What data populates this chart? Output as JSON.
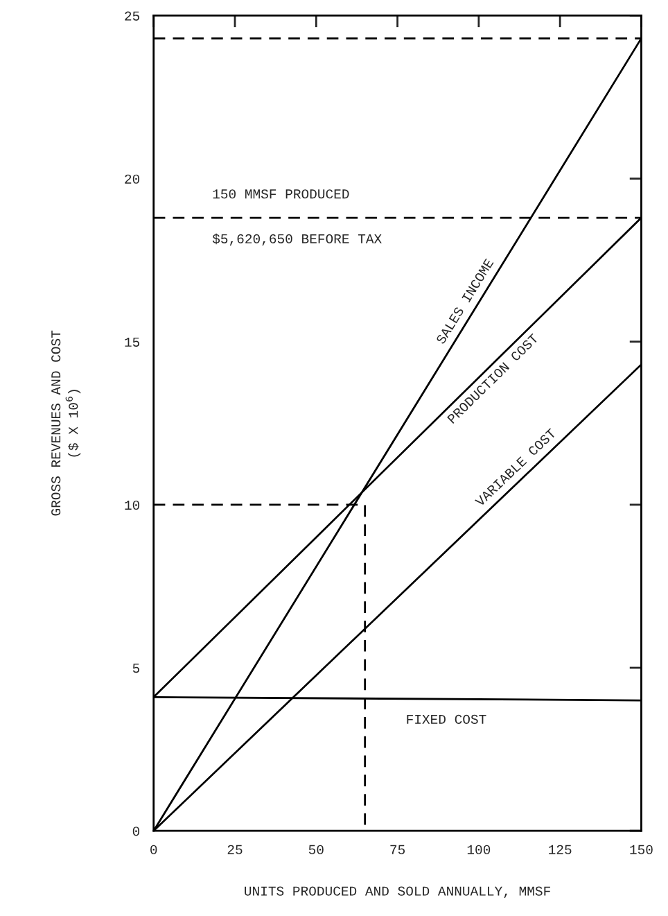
{
  "chart_data": {
    "type": "line",
    "xlabel": "UNITS PRODUCED AND SOLD ANNUALLY, MMSF",
    "ylabel": "GROSS REVENUES AND COST\n($ X 10$^{6}$)",
    "xlim": [
      0,
      150
    ],
    "ylim": [
      0,
      25
    ],
    "xticks": [
      0,
      25,
      50,
      75,
      100,
      125,
      150
    ],
    "yticks": [
      0,
      5,
      10,
      15,
      20,
      25
    ],
    "grid": false,
    "legend": false,
    "marker": "none",
    "series": [
      {
        "name": "SALES INCOME",
        "color": "#000000",
        "x": [
          0,
          150
        ],
        "values": [
          0,
          24.3
        ],
        "line_style": "solid"
      },
      {
        "name": "PRODUCTION COST",
        "color": "#000000",
        "x": [
          0,
          150
        ],
        "values": [
          4.1,
          18.8
        ],
        "line_style": "solid"
      },
      {
        "name": "VARIABLE COST",
        "color": "#000000",
        "x": [
          0,
          150
        ],
        "values": [
          0,
          14.3
        ],
        "line_style": "solid"
      },
      {
        "name": "FIXED COST",
        "color": "#000000",
        "x": [
          0,
          150
        ],
        "values": [
          4.1,
          4.0
        ],
        "line_style": "solid"
      },
      {
        "color": "#000000",
        "x": [
          0,
          65,
          65
        ],
        "values": [
          10,
          10,
          0
        ],
        "line_style": "dashed"
      }
    ],
    "ref_lines": [
      {
        "axis": "y",
        "value": 24.3,
        "color": "#000000",
        "line_style": "dashed"
      },
      {
        "axis": "y",
        "value": 18.8,
        "color": "#000000",
        "line_style": "dashed"
      }
    ],
    "annotations": [
      "150 MMSF PRODUCED",
      "$5,620,650 BEFORE TAX"
    ]
  }
}
